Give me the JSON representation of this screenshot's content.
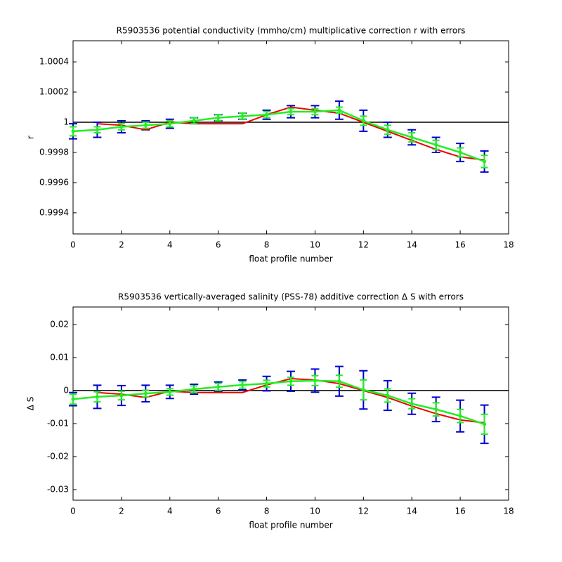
{
  "chart_data": [
    {
      "type": "errorbar",
      "title": "R5903536 potential conductivity (mmho/cm) multiplicative correction r with errors",
      "xlabel": "float profile number",
      "ylabel": "r",
      "xlim": [
        0,
        18
      ],
      "xticks": [
        0,
        2,
        4,
        6,
        8,
        10,
        12,
        14,
        16,
        18
      ],
      "ylim": [
        0.99926,
        1.00054
      ],
      "yticks": [
        0.9994,
        0.9996,
        0.9998,
        1,
        1.0002,
        1.0004
      ],
      "refline": 1,
      "series": [
        {
          "color": "#0000cc",
          "style": "errorbar",
          "x": [
            0,
            1,
            2,
            3,
            4,
            5,
            6,
            7,
            8,
            9,
            10,
            11,
            12,
            13,
            14,
            15,
            16,
            17
          ],
          "values": [
            0.99994,
            0.99995,
            0.99997,
            0.99998,
            0.99999,
            1.00001,
            1.00003,
            1.00004,
            1.00005,
            1.00007,
            1.00007,
            1.00008,
            1.00001,
            0.99995,
            0.9999,
            0.99985,
            0.9998,
            0.99974
          ],
          "errors": [
            5e-05,
            5e-05,
            4e-05,
            3e-05,
            3e-05,
            2e-05,
            2e-05,
            2e-05,
            3e-05,
            4e-05,
            4e-05,
            6e-05,
            7e-05,
            5e-05,
            5e-05,
            5e-05,
            6e-05,
            7e-05
          ]
        },
        {
          "color": "#ee0000",
          "style": "line",
          "x": [
            1,
            2,
            3,
            4,
            5,
            6,
            7,
            8,
            9,
            10,
            11,
            12,
            13,
            14,
            15,
            16,
            17
          ],
          "values": [
            0.99999,
            0.99998,
            0.99995,
            1.0,
            0.99999,
            0.99999,
            0.99999,
            1.00005,
            1.0001,
            1.00008,
            1.00006,
            1.0,
            0.99994,
            0.99988,
            0.99982,
            0.99977,
            0.99975
          ]
        },
        {
          "color": "#22ee22",
          "style": "errorline",
          "x": [
            0,
            1,
            2,
            3,
            4,
            5,
            6,
            7,
            8,
            9,
            10,
            11,
            12,
            13,
            14,
            15,
            16,
            17
          ],
          "values": [
            0.99994,
            0.99995,
            0.99997,
            0.99998,
            0.99999,
            1.00001,
            1.00003,
            1.00004,
            1.00005,
            1.00007,
            1.00007,
            1.00008,
            1.00001,
            0.99995,
            0.9999,
            0.99985,
            0.9998,
            0.99974
          ],
          "errors": [
            3e-05,
            2e-05,
            2e-05,
            2e-05,
            2e-05,
            2e-05,
            2e-05,
            2e-05,
            2e-05,
            2e-05,
            2e-05,
            2e-05,
            3e-05,
            3e-05,
            3e-05,
            3e-05,
            3e-05,
            4e-05
          ]
        }
      ]
    },
    {
      "type": "errorbar",
      "title": "R5903536 vertically-averaged salinity (PSS-78) additive correction Δ S with errors",
      "xlabel": "float profile number",
      "ylabel": "Δ S",
      "xlim": [
        0,
        18
      ],
      "xticks": [
        0,
        2,
        4,
        6,
        8,
        10,
        12,
        14,
        16,
        18
      ],
      "ylim": [
        -0.0332,
        0.0253
      ],
      "yticks": [
        -0.03,
        -0.02,
        -0.01,
        0,
        0.01,
        0.02
      ],
      "refline": 0,
      "series": [
        {
          "color": "#0000cc",
          "style": "errorbar",
          "x": [
            0,
            1,
            2,
            3,
            4,
            5,
            6,
            7,
            8,
            9,
            10,
            11,
            12,
            13,
            14,
            15,
            16,
            17
          ],
          "values": [
            -0.0026,
            -0.0019,
            -0.0015,
            -0.0009,
            -0.0004,
            0.0004,
            0.0011,
            0.0017,
            0.0021,
            0.0028,
            0.003,
            0.0028,
            0.0002,
            -0.0015,
            -0.004,
            -0.0057,
            -0.0077,
            -0.0102
          ],
          "errors": [
            0.002,
            0.0035,
            0.003,
            0.0025,
            0.002,
            0.0015,
            0.0015,
            0.0015,
            0.0022,
            0.003,
            0.0035,
            0.0045,
            0.0058,
            0.0045,
            0.0032,
            0.0037,
            0.0048,
            0.0058
          ]
        },
        {
          "color": "#ee0000",
          "style": "line",
          "x": [
            1,
            2,
            3,
            4,
            5,
            6,
            7,
            8,
            9,
            10,
            11,
            12,
            13,
            14,
            15,
            16,
            17
          ],
          "values": [
            -0.0006,
            -0.0011,
            -0.0021,
            -0.0002,
            -0.0006,
            -0.0006,
            -0.0006,
            0.0017,
            0.0036,
            0.0032,
            0.0021,
            0,
            -0.0021,
            -0.0047,
            -0.007,
            -0.0089,
            -0.0098
          ]
        },
        {
          "color": "#22ee22",
          "style": "errorline",
          "x": [
            0,
            1,
            2,
            3,
            4,
            5,
            6,
            7,
            8,
            9,
            10,
            11,
            12,
            13,
            14,
            15,
            16,
            17
          ],
          "values": [
            -0.0026,
            -0.0019,
            -0.0015,
            -0.0009,
            -0.0004,
            0.0004,
            0.0011,
            0.0017,
            0.0021,
            0.0028,
            0.003,
            0.0028,
            0.0002,
            -0.0015,
            -0.004,
            -0.0057,
            -0.0077,
            -0.0102
          ],
          "errors": [
            0.0015,
            0.0015,
            0.0013,
            0.001,
            0.001,
            0.001,
            0.001,
            0.001,
            0.001,
            0.0012,
            0.0015,
            0.0018,
            0.003,
            0.002,
            0.0015,
            0.002,
            0.002,
            0.003
          ]
        }
      ]
    }
  ]
}
